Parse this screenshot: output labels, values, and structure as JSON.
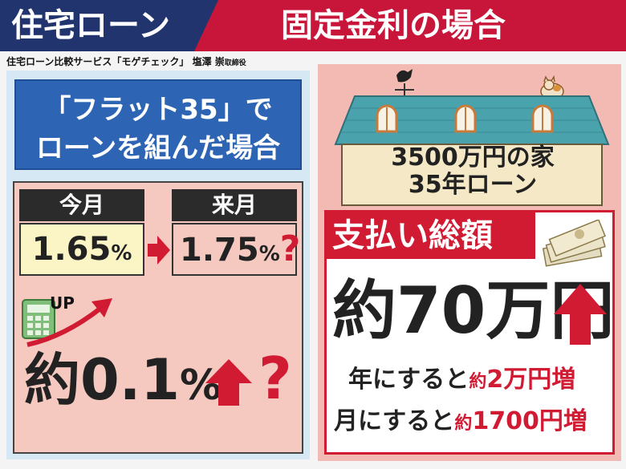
{
  "header": {
    "left_title": "住宅ローン",
    "right_title": "固定金利の場合"
  },
  "credit": {
    "main": "住宅ローン比較サービス「モゲチェック」 塩澤 崇",
    "role": "取締役"
  },
  "left": {
    "flat_line1": "「フラット35」で",
    "flat_line2": "ローンを組んだ場合",
    "this_month_label": "今月",
    "this_month_value": "1.65",
    "next_month_label": "来月",
    "next_month_value": "1.75",
    "percent": "%",
    "question": "?",
    "up_label": "UP",
    "big_prefix": "約0.1",
    "big_percent": "%"
  },
  "right": {
    "house_line1": "3500万円の家",
    "house_line2": "35年ローン",
    "total_label": "支払い総額",
    "amount": "約70万円",
    "year_prefix": "年にすると",
    "year_value_pre": "約",
    "year_value": "2万円増",
    "month_prefix": "月にすると",
    "month_value_pre": "約",
    "month_value": "1700円増"
  },
  "colors": {
    "navy": "#22346e",
    "crimson": "#c8163a",
    "red": "#d11b33",
    "blue": "#2d64b4",
    "pink": "#f5c8c0",
    "yellow": "#fbf5c6",
    "roof": "#4aa2ad"
  }
}
